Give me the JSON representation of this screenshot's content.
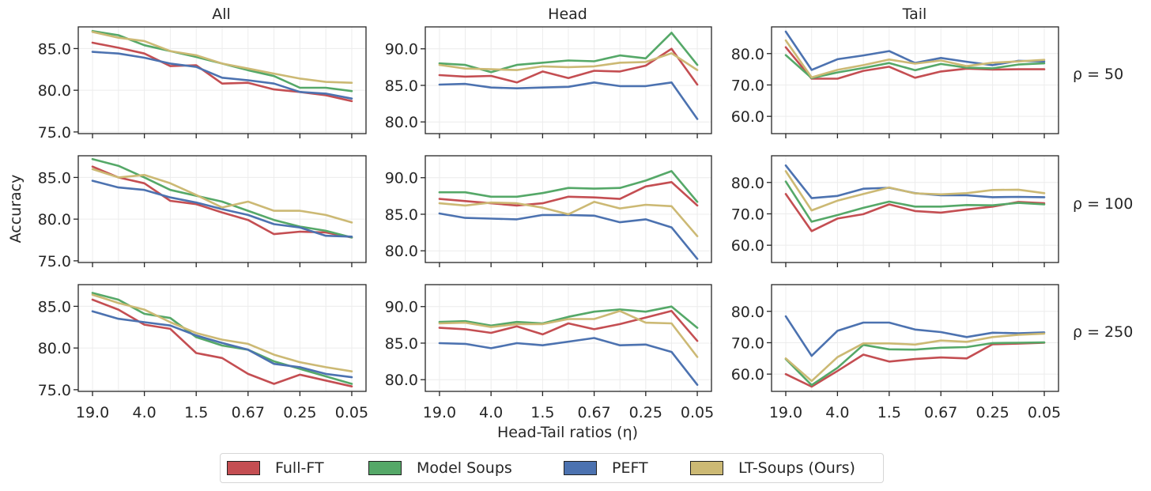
{
  "figure": {
    "ylabel": "Accuracy",
    "xlabel": "Head-Tail ratios (η)",
    "column_titles": [
      "All",
      "Head",
      "Tail"
    ],
    "row_labels": [
      "ρ = 50",
      "ρ = 100",
      "ρ = 250"
    ]
  },
  "legend": [
    {
      "name": "Full-FT",
      "color": "#c44e52"
    },
    {
      "name": "Model Soups",
      "color": "#55a868"
    },
    {
      "name": "PEFT",
      "color": "#4c72b0"
    },
    {
      "name": "LT-Soups (Ours)",
      "color": "#ccb974"
    }
  ],
  "chart_data": {
    "type": "line",
    "grid": true,
    "legend_position": "bottom-center",
    "series_names": [
      "Full-FT",
      "Model Soups",
      "PEFT",
      "LT-Soups (Ours)"
    ],
    "series_colors": [
      "#c44e52",
      "#55a868",
      "#4c72b0",
      "#ccb974"
    ],
    "x_tick_labels": [
      "19.0",
      "4.0",
      "1.5",
      "0.67",
      "0.25",
      "0.05"
    ],
    "x_tick_positions": [
      0,
      2,
      4,
      6,
      8,
      10
    ],
    "y_ticks": {
      "All": [
        75.0,
        80.0,
        85.0
      ],
      "Head": [
        80.0,
        85.0,
        90.0
      ],
      "Tail": [
        60.0,
        70.0,
        80.0
      ]
    },
    "ylim": {
      "All": [
        74.8,
        87.6
      ],
      "Head": [
        78.4,
        93.0
      ],
      "Tail": [
        54.5,
        88.5
      ]
    },
    "panels": [
      {
        "row": "ρ = 50",
        "column": "All",
        "series": [
          {
            "name": "Full-FT",
            "values": [
              85.7,
              85.1,
              84.4,
              82.9,
              83.0,
              80.8,
              80.9,
              80.1,
              79.8,
              79.4,
              78.7
            ]
          },
          {
            "name": "Model Soups",
            "values": [
              87.1,
              86.6,
              85.4,
              84.7,
              84.0,
              83.2,
              82.4,
              81.7,
              80.3,
              80.3,
              79.9
            ]
          },
          {
            "name": "PEFT",
            "values": [
              84.6,
              84.4,
              83.9,
              83.2,
              82.8,
              81.5,
              81.2,
              80.8,
              79.8,
              79.6,
              79.0
            ]
          },
          {
            "name": "LT-Soups (Ours)",
            "values": [
              87.0,
              86.3,
              85.9,
              84.7,
              84.2,
              83.2,
              82.6,
              82.0,
              81.4,
              81.0,
              80.9
            ]
          }
        ]
      },
      {
        "row": "ρ = 50",
        "column": "Head",
        "series": [
          {
            "name": "Full-FT",
            "values": [
              86.4,
              86.2,
              86.3,
              85.4,
              86.9,
              86.0,
              87.0,
              86.9,
              87.7,
              90.0,
              85.1
            ]
          },
          {
            "name": "Model Soups",
            "values": [
              88.0,
              87.8,
              86.8,
              87.8,
              88.1,
              88.4,
              88.3,
              89.1,
              88.7,
              92.2,
              87.8
            ]
          },
          {
            "name": "PEFT",
            "values": [
              85.1,
              85.2,
              84.7,
              84.6,
              84.7,
              84.8,
              85.4,
              84.9,
              84.9,
              85.4,
              80.4
            ]
          },
          {
            "name": "LT-Soups (Ours)",
            "values": [
              87.8,
              87.3,
              87.2,
              87.1,
              87.6,
              87.5,
              87.6,
              88.1,
              88.2,
              89.4,
              87.1
            ]
          }
        ]
      },
      {
        "row": "ρ = 50",
        "column": "Tail",
        "series": [
          {
            "name": "Full-FT",
            "values": [
              82.0,
              72.0,
              72.0,
              74.5,
              75.8,
              72.3,
              74.3,
              75.2,
              74.9,
              75.0,
              75.0
            ]
          },
          {
            "name": "Model Soups",
            "values": [
              79.5,
              72.2,
              74.0,
              75.4,
              77.0,
              74.7,
              76.7,
              75.5,
              75.3,
              76.5,
              76.9
            ]
          },
          {
            "name": "PEFT",
            "values": [
              87.0,
              74.8,
              78.2,
              79.4,
              80.8,
              77.0,
              78.6,
              77.4,
              76.3,
              77.7,
              77.5
            ]
          },
          {
            "name": "LT-Soups (Ours)",
            "values": [
              84.2,
              72.4,
              74.8,
              76.3,
              78.1,
              76.8,
              77.8,
              76.0,
              77.1,
              77.5,
              78.0
            ]
          }
        ]
      },
      {
        "row": "ρ = 100",
        "column": "All",
        "series": [
          {
            "name": "Full-FT",
            "values": [
              86.3,
              85.0,
              84.3,
              82.2,
              81.8,
              80.8,
              79.9,
              78.2,
              78.5,
              78.4,
              77.8
            ]
          },
          {
            "name": "Model Soups",
            "values": [
              87.2,
              86.4,
              85.0,
              83.5,
              82.8,
              82.1,
              81.0,
              79.9,
              79.1,
              78.6,
              77.8
            ]
          },
          {
            "name": "PEFT",
            "values": [
              84.6,
              83.8,
              83.5,
              82.6,
              82.0,
              81.2,
              80.5,
              79.4,
              79.0,
              78.0,
              77.9
            ]
          },
          {
            "name": "LT-Soups (Ours)",
            "values": [
              86.0,
              85.0,
              85.3,
              84.3,
              82.9,
              81.4,
              82.1,
              81.0,
              81.0,
              80.5,
              79.6
            ]
          }
        ]
      },
      {
        "row": "ρ = 100",
        "column": "Head",
        "series": [
          {
            "name": "Full-FT",
            "values": [
              87.1,
              86.8,
              86.5,
              86.2,
              86.5,
              87.4,
              87.3,
              87.1,
              88.8,
              89.4,
              86.2
            ]
          },
          {
            "name": "Model Soups",
            "values": [
              88.0,
              88.0,
              87.4,
              87.4,
              87.9,
              88.6,
              88.5,
              88.6,
              89.6,
              90.9,
              86.7
            ]
          },
          {
            "name": "PEFT",
            "values": [
              85.1,
              84.5,
              84.4,
              84.3,
              84.9,
              84.9,
              84.8,
              83.9,
              84.3,
              83.2,
              78.9
            ]
          },
          {
            "name": "LT-Soups (Ours)",
            "values": [
              86.5,
              86.2,
              86.6,
              86.5,
              85.9,
              85.0,
              86.7,
              85.8,
              86.3,
              86.1,
              82.0
            ]
          }
        ]
      },
      {
        "row": "ρ = 100",
        "column": "Tail",
        "series": [
          {
            "name": "Full-FT",
            "values": [
              76.3,
              64.5,
              68.5,
              69.9,
              73.0,
              70.9,
              70.4,
              71.4,
              72.3,
              73.8,
              73.4
            ]
          },
          {
            "name": "Model Soups",
            "values": [
              80.3,
              67.5,
              69.6,
              71.9,
              73.9,
              72.3,
              72.3,
              72.8,
              72.7,
              73.5,
              73.0
            ]
          },
          {
            "name": "PEFT",
            "values": [
              85.4,
              75.0,
              75.7,
              78.0,
              78.3,
              76.6,
              75.9,
              75.9,
              75.3,
              75.4,
              75.3
            ]
          },
          {
            "name": "LT-Soups (Ours)",
            "values": [
              83.6,
              71.1,
              74.2,
              76.3,
              78.4,
              76.5,
              76.2,
              76.6,
              77.6,
              77.7,
              76.6
            ]
          }
        ]
      },
      {
        "row": "ρ = 250",
        "column": "All",
        "series": [
          {
            "name": "Full-FT",
            "values": [
              85.8,
              84.6,
              82.8,
              82.3,
              79.4,
              78.8,
              76.9,
              75.7,
              76.8,
              76.1,
              75.4
            ]
          },
          {
            "name": "Model Soups",
            "values": [
              86.6,
              85.8,
              84.1,
              83.6,
              81.3,
              80.3,
              79.8,
              78.4,
              77.5,
              76.6,
              75.7
            ]
          },
          {
            "name": "PEFT",
            "values": [
              84.4,
              83.5,
              83.1,
              82.7,
              81.5,
              80.6,
              79.8,
              78.1,
              77.7,
              76.9,
              76.5
            ]
          },
          {
            "name": "LT-Soups (Ours)",
            "values": [
              86.4,
              85.4,
              84.6,
              83.1,
              81.8,
              81.0,
              80.5,
              79.2,
              78.3,
              77.7,
              77.2
            ]
          }
        ]
      },
      {
        "row": "ρ = 250",
        "column": "Head",
        "series": [
          {
            "name": "Full-FT",
            "values": [
              87.1,
              86.9,
              86.4,
              87.3,
              86.2,
              87.7,
              86.9,
              87.6,
              88.5,
              89.4,
              85.3
            ]
          },
          {
            "name": "Model Soups",
            "values": [
              87.9,
              88.0,
              87.4,
              87.9,
              87.7,
              88.6,
              89.3,
              89.6,
              89.3,
              90.0,
              87.1
            ]
          },
          {
            "name": "PEFT",
            "values": [
              85.0,
              84.9,
              84.3,
              85.0,
              84.7,
              85.2,
              85.7,
              84.7,
              84.8,
              83.8,
              79.3
            ]
          },
          {
            "name": "LT-Soups (Ours)",
            "values": [
              87.7,
              87.8,
              87.2,
              87.6,
              87.6,
              88.3,
              88.3,
              89.4,
              87.8,
              87.7,
              83.1
            ]
          }
        ]
      },
      {
        "row": "ρ = 250",
        "column": "Tail",
        "series": [
          {
            "name": "Full-FT",
            "values": [
              60.0,
              56.0,
              61.0,
              66.2,
              64.0,
              64.8,
              65.3,
              65.0,
              69.5,
              69.7,
              70.0
            ]
          },
          {
            "name": "Model Soups",
            "values": [
              64.8,
              56.5,
              62.0,
              69.3,
              67.9,
              67.8,
              68.4,
              68.6,
              69.9,
              70.0,
              70.1
            ]
          },
          {
            "name": "PEFT",
            "values": [
              78.4,
              65.8,
              73.8,
              76.4,
              76.4,
              74.2,
              73.4,
              71.8,
              73.2,
              73.0,
              73.3
            ]
          },
          {
            "name": "LT-Soups (Ours)",
            "values": [
              65.0,
              57.8,
              65.4,
              69.8,
              69.8,
              69.4,
              70.7,
              70.3,
              71.8,
              72.5,
              72.9
            ]
          }
        ]
      }
    ]
  }
}
